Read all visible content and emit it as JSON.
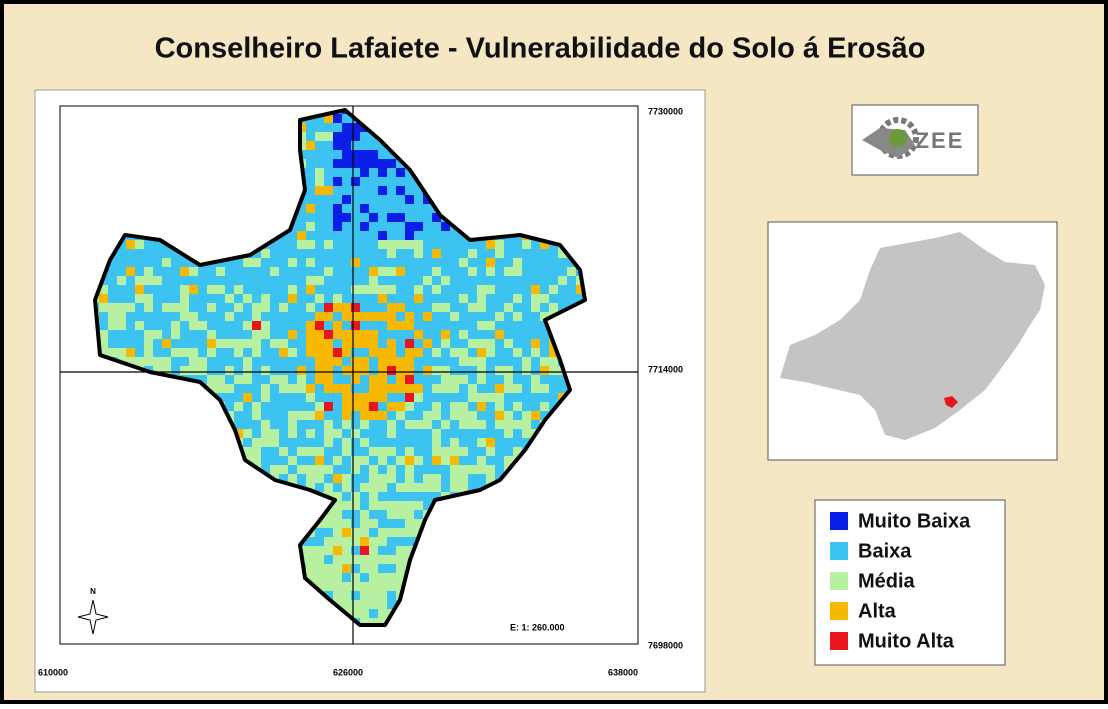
{
  "title": "Conselheiro Lafaiete - Vulnerabilidade do Solo á Erosão",
  "logo_text": "ZEE",
  "map": {
    "y_labels": [
      "7730000",
      "7714000",
      "7698000"
    ],
    "x_labels": [
      "610000",
      "626000",
      "638000"
    ],
    "north": "N",
    "scale": "E: 1: 260.000"
  },
  "legend": [
    {
      "label": "Muito Baixa",
      "color": "#0a1ee6"
    },
    {
      "label": "Baixa",
      "color": "#3cc3f2"
    },
    {
      "label": "Média",
      "color": "#b6f0a0"
    },
    {
      "label": "Alta",
      "color": "#f7b800"
    },
    {
      "label": "Muito Alta",
      "color": "#e8141e"
    }
  ]
}
